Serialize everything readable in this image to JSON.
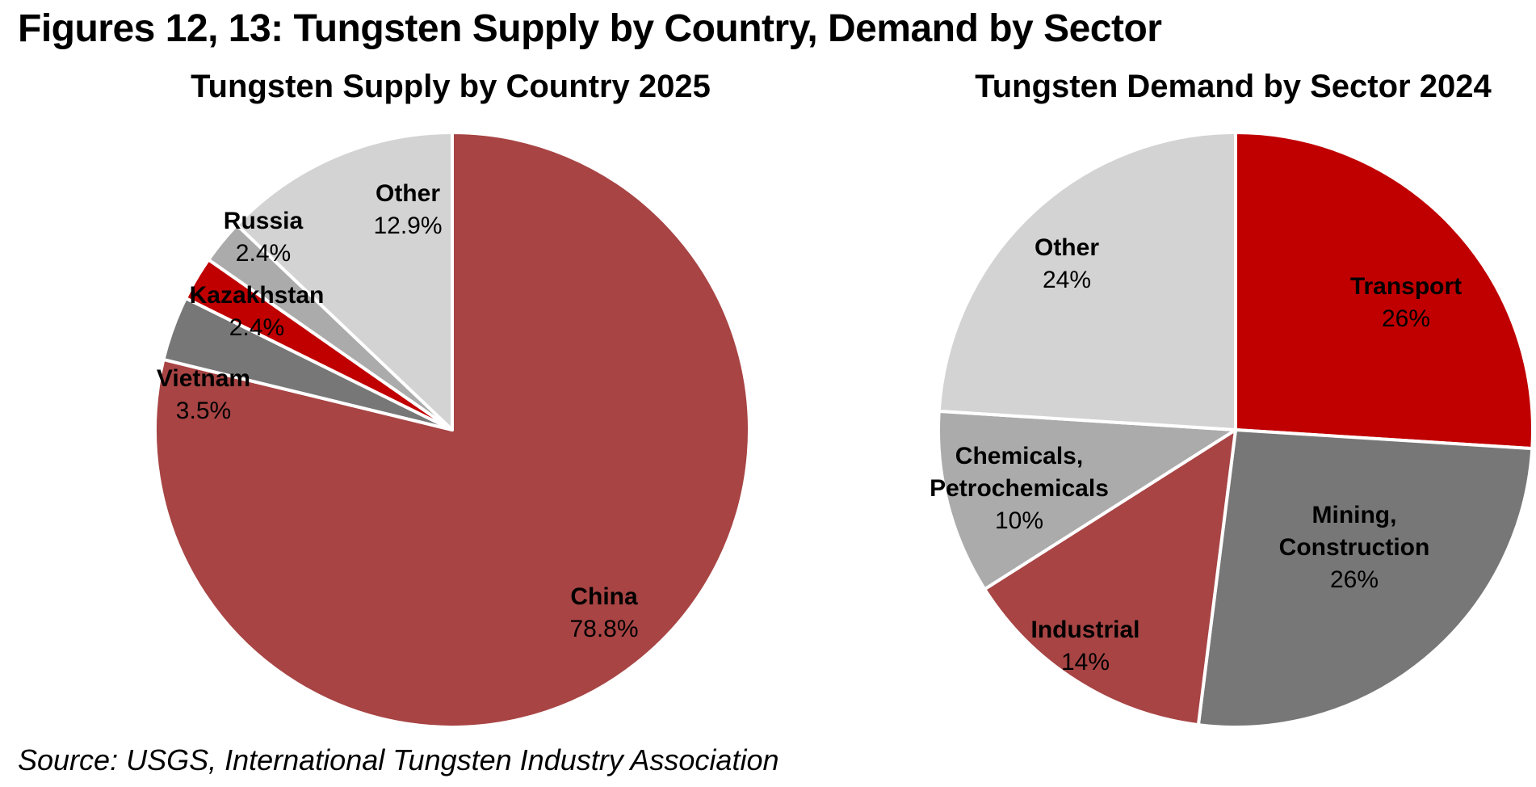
{
  "title": "Figures 12, 13: Tungsten Supply by Country, Demand by Sector",
  "source": "Source: USGS, International Tungsten Industry Association",
  "chart_data": [
    {
      "type": "pie",
      "title": "Tungsten Supply by Country 2025",
      "slices": [
        {
          "name": "China",
          "value": 78.8,
          "label": "78.8%",
          "color": "#A84444"
        },
        {
          "name": "Vietnam",
          "value": 3.5,
          "label": "3.5%",
          "color": "#777777"
        },
        {
          "name": "Kazakhstan",
          "value": 2.4,
          "label": "2.4%",
          "color": "#C00000"
        },
        {
          "name": "Russia",
          "value": 2.4,
          "label": "2.4%",
          "color": "#ABABAB"
        },
        {
          "name": "Other",
          "value": 12.9,
          "label": "12.9%",
          "color": "#D3D3D3"
        }
      ]
    },
    {
      "type": "pie",
      "title": "Tungsten Demand by Sector 2024",
      "slices": [
        {
          "name": "Transport",
          "value": 26,
          "label": "26%",
          "color": "#C00000"
        },
        {
          "name": "Mining,\nConstruction",
          "value": 26,
          "label": "26%",
          "color": "#777777"
        },
        {
          "name": "Industrial",
          "value": 14,
          "label": "14%",
          "color": "#A84444"
        },
        {
          "name": "Chemicals,\nPetrochemicals",
          "value": 10,
          "label": "10%",
          "color": "#ABABAB"
        },
        {
          "name": "Other",
          "value": 24,
          "label": "24%",
          "color": "#D3D3D3"
        }
      ]
    }
  ]
}
